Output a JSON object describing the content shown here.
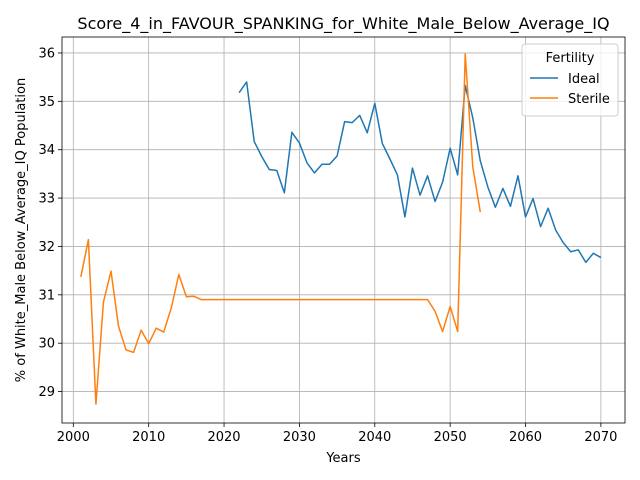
{
  "chart_data": {
    "type": "line",
    "title": "Score_4_in_FAVOUR_SPANKING_for_White_Male_Below_Average_IQ",
    "xlabel": "Years",
    "ylabel": "% of White_Male Below_Average_IQ Population",
    "xlim": [
      1998.5,
      2073.2
    ],
    "ylim": [
      28.35,
      36.33
    ],
    "xticks": [
      2000,
      2010,
      2020,
      2030,
      2040,
      2050,
      2060,
      2070
    ],
    "yticks": [
      29,
      30,
      31,
      32,
      33,
      34,
      35,
      36
    ],
    "grid": true,
    "legend": {
      "title": "Fertility",
      "position": "top-right"
    },
    "series": [
      {
        "name": "Ideal",
        "color": "#1f77b4",
        "x": [
          2022,
          2023,
          2024,
          2025,
          2026,
          2027,
          2028,
          2029,
          2030,
          2031,
          2032,
          2033,
          2034,
          2035,
          2036,
          2037,
          2038,
          2039,
          2040,
          2041,
          2042,
          2043,
          2044,
          2045,
          2046,
          2047,
          2048,
          2049,
          2050,
          2051,
          2052,
          2053,
          2054,
          2055,
          2056,
          2057,
          2058,
          2059,
          2060,
          2061,
          2062,
          2063,
          2064,
          2065,
          2066,
          2067,
          2068,
          2069,
          2070
        ],
        "y": [
          35.18,
          35.4,
          34.17,
          33.86,
          33.59,
          33.57,
          33.11,
          34.36,
          34.14,
          33.73,
          33.52,
          33.7,
          33.7,
          33.87,
          34.58,
          34.56,
          34.71,
          34.35,
          34.96,
          34.13,
          33.81,
          33.48,
          32.61,
          33.62,
          33.06,
          33.46,
          32.93,
          33.33,
          34.03,
          33.48,
          35.33,
          34.66,
          33.77,
          33.23,
          32.81,
          33.2,
          32.83,
          33.46,
          32.61,
          32.99,
          32.41,
          32.79,
          32.34,
          32.08,
          31.89,
          31.93,
          31.67,
          31.86,
          31.77
        ]
      },
      {
        "name": "Sterile",
        "color": "#ff7f0e",
        "x": [
          2001,
          2002,
          2003,
          2004,
          2005,
          2006,
          2007,
          2008,
          2009,
          2010,
          2011,
          2012,
          2013,
          2014,
          2015,
          2016,
          2017,
          2018,
          2019,
          2020,
          2021,
          2022,
          2023,
          2024,
          2025,
          2026,
          2027,
          2028,
          2029,
          2030,
          2031,
          2032,
          2033,
          2034,
          2035,
          2036,
          2037,
          2038,
          2039,
          2040,
          2041,
          2042,
          2043,
          2044,
          2045,
          2046,
          2047,
          2048,
          2049,
          2050,
          2051,
          2052,
          2053,
          2054
        ],
        "y": [
          31.37,
          32.14,
          28.74,
          30.85,
          31.49,
          30.35,
          29.86,
          29.81,
          30.27,
          29.99,
          30.31,
          30.23,
          30.73,
          31.42,
          30.96,
          30.97,
          30.9,
          30.9,
          30.9,
          30.9,
          30.9,
          30.9,
          30.9,
          30.9,
          30.9,
          30.9,
          30.9,
          30.9,
          30.9,
          30.9,
          30.9,
          30.9,
          30.9,
          30.9,
          30.9,
          30.9,
          30.9,
          30.9,
          30.9,
          30.9,
          30.9,
          30.9,
          30.9,
          30.9,
          30.9,
          30.9,
          30.9,
          30.66,
          30.24,
          30.76,
          30.24,
          35.98,
          33.65,
          32.71
        ]
      }
    ]
  }
}
